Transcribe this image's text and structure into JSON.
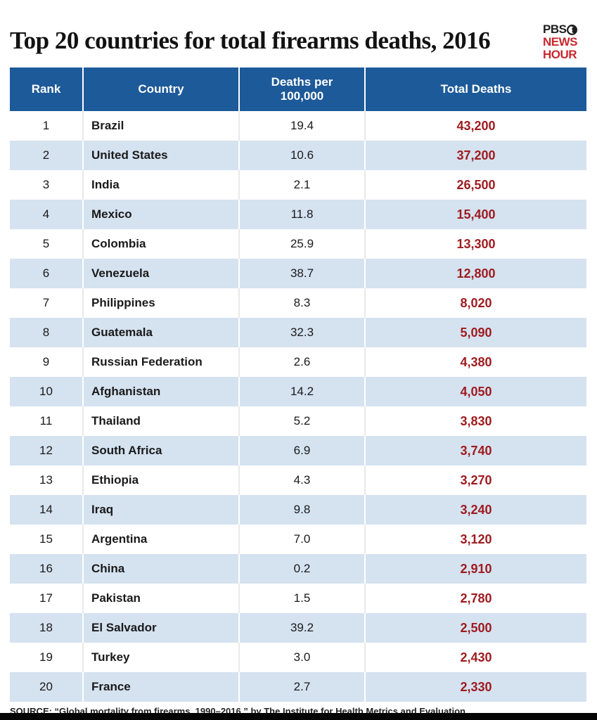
{
  "page": {
    "title": "Top 20 countries for total firearms deaths, 2016",
    "source": "SOURCE: “Global mortality from firearms, 1990–2016,” by The Institute for Health Metrics and Evaluation"
  },
  "logo": {
    "pbs": "PBS",
    "news": "NEWS",
    "hour": "HOUR",
    "face_icon": "pbs-face-icon",
    "red": "#c8282e",
    "dark": "#1e1e1e"
  },
  "colors": {
    "header_bg": "#1d5a99",
    "row_alt_bg": "#d5e2f0",
    "total_red": "#9e1b1f",
    "body_text": "#1a1a1a",
    "bottom_bar": "#050505"
  },
  "chart_data": {
    "type": "table",
    "title": "Top 20 countries for total firearms deaths, 2016",
    "columns": [
      "Rank",
      "Country",
      "Deaths per 100,000",
      "Total Deaths"
    ],
    "rows": [
      [
        1,
        "Brazil",
        "19.4",
        "43,200"
      ],
      [
        2,
        "United States",
        "10.6",
        "37,200"
      ],
      [
        3,
        "India",
        "2.1",
        "26,500"
      ],
      [
        4,
        "Mexico",
        "11.8",
        "15,400"
      ],
      [
        5,
        "Colombia",
        "25.9",
        "13,300"
      ],
      [
        6,
        "Venezuela",
        "38.7",
        "12,800"
      ],
      [
        7,
        "Philippines",
        "8.3",
        "8,020"
      ],
      [
        8,
        "Guatemala",
        "32.3",
        "5,090"
      ],
      [
        9,
        "Russian Federation",
        "2.6",
        "4,380"
      ],
      [
        10,
        "Afghanistan",
        "14.2",
        "4,050"
      ],
      [
        11,
        "Thailand",
        "5.2",
        "3,830"
      ],
      [
        12,
        "South Africa",
        "6.9",
        "3,740"
      ],
      [
        13,
        "Ethiopia",
        "4.3",
        "3,270"
      ],
      [
        14,
        "Iraq",
        "9.8",
        "3,240"
      ],
      [
        15,
        "Argentina",
        "7.0",
        "3,120"
      ],
      [
        16,
        "China",
        "0.2",
        "2,910"
      ],
      [
        17,
        "Pakistan",
        "1.5",
        "2,780"
      ],
      [
        18,
        "El Salvador",
        "39.2",
        "2,500"
      ],
      [
        19,
        "Turkey",
        "3.0",
        "2,430"
      ],
      [
        20,
        "France",
        "2.7",
        "2,330"
      ]
    ],
    "source": "SOURCE: “Global mortality from firearms, 1990–2016,” by The Institute for Health Metrics and Evaluation",
    "layout": {
      "row_striping": "white / light-blue alternating",
      "totals_color": "#9e1b1f"
    }
  }
}
